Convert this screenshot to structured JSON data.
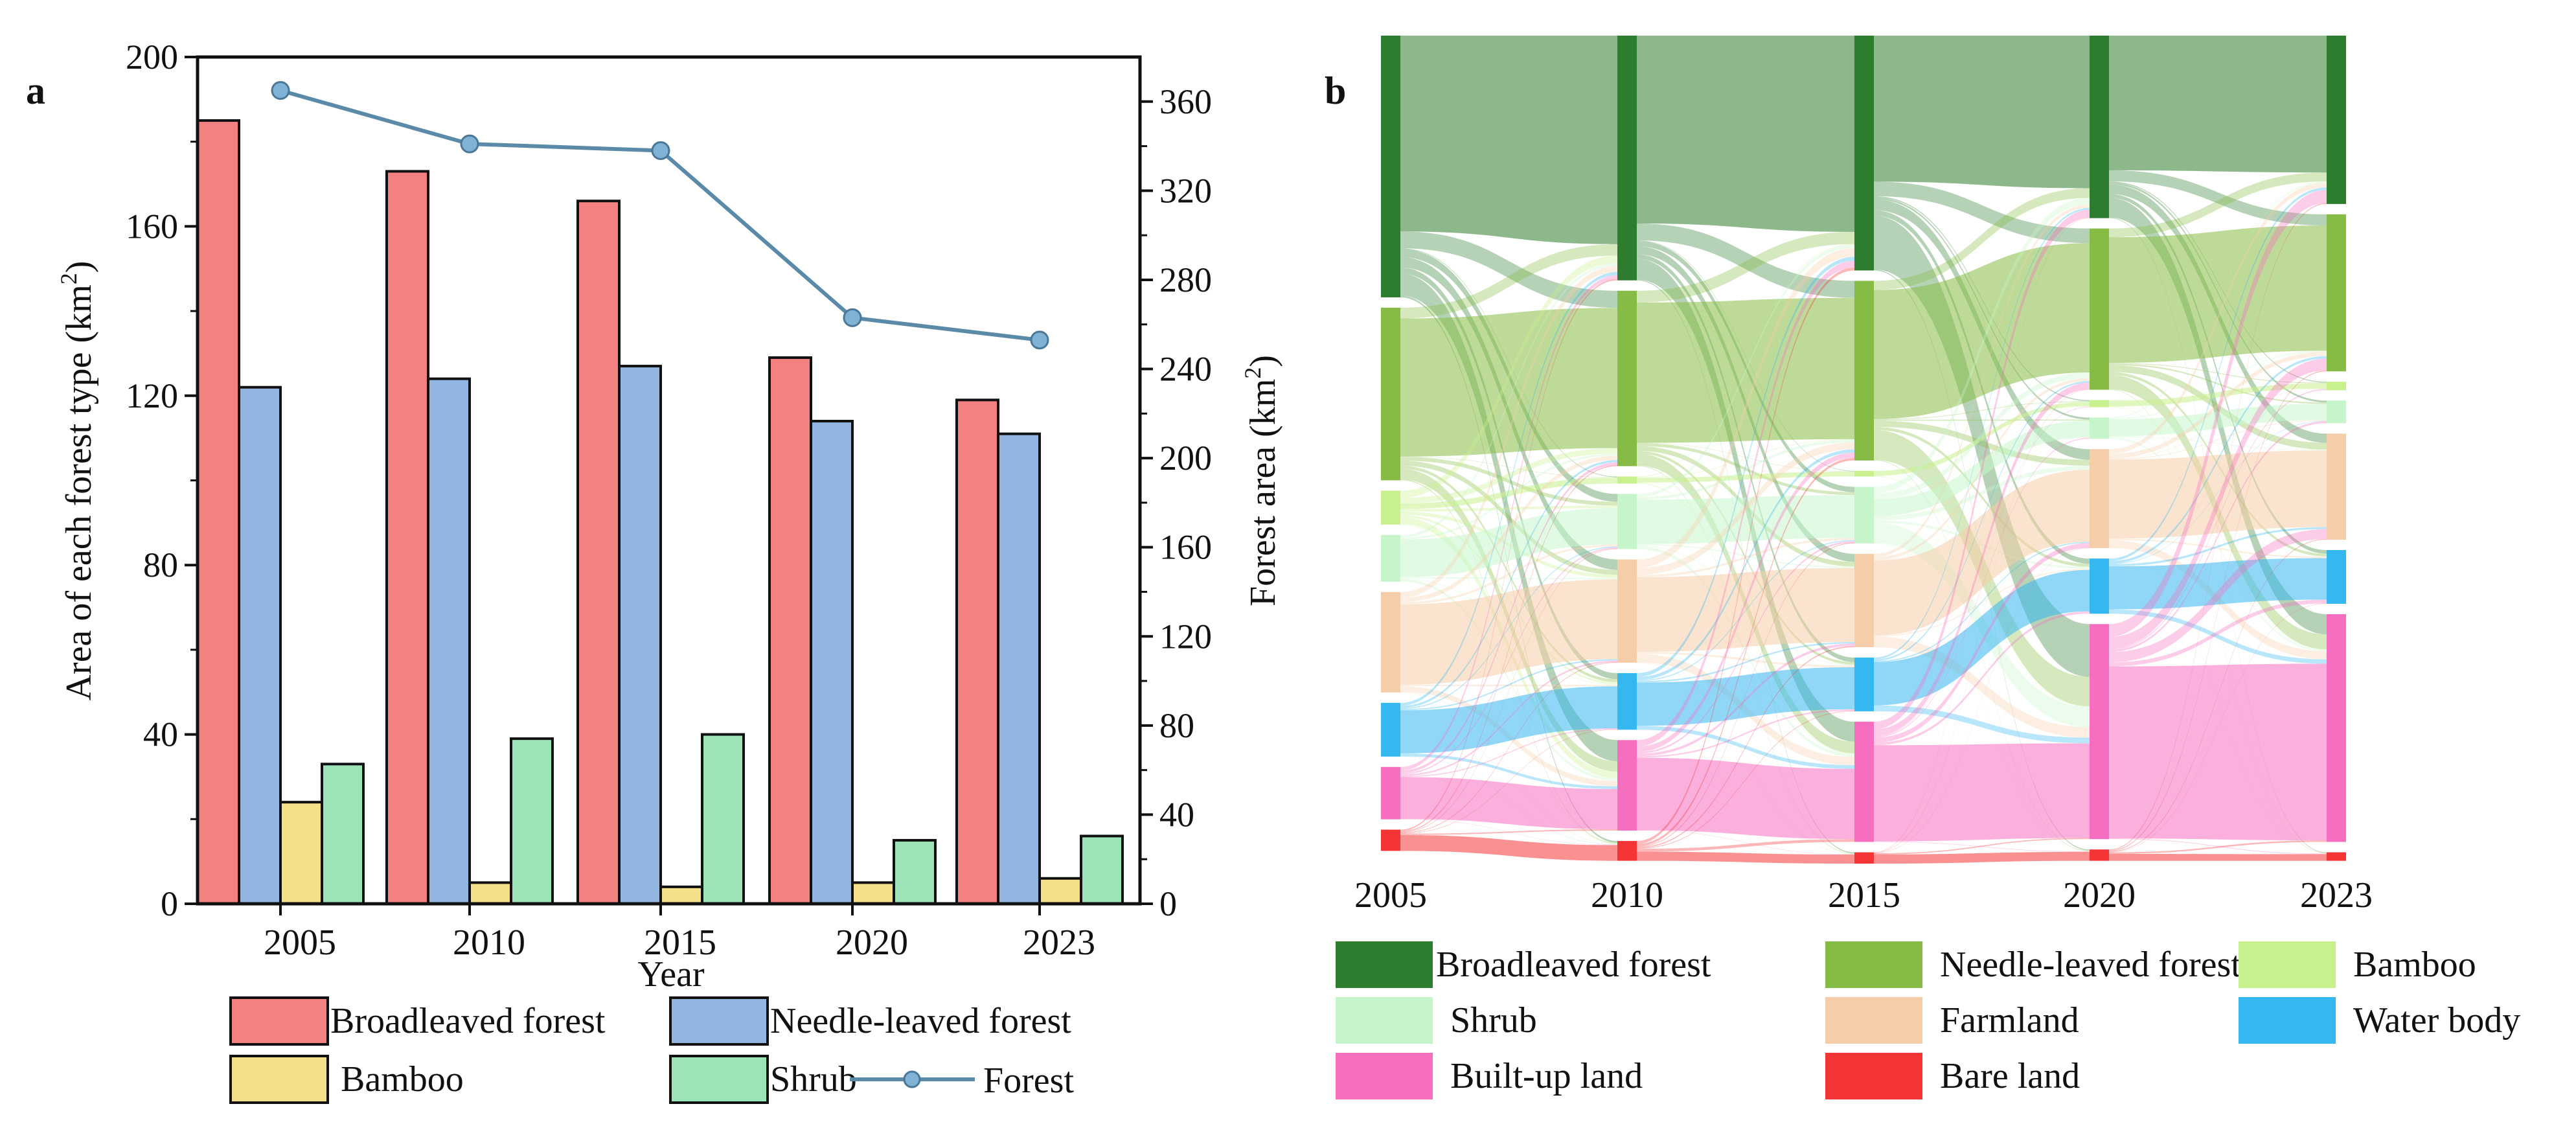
{
  "panel_a_label": "a",
  "panel_b_label": "b",
  "chart_data": [
    {
      "type": "bar",
      "panel": "a",
      "categories": [
        "2005",
        "2010",
        "2015",
        "2020",
        "2023"
      ],
      "series": [
        {
          "name": "Broadleaved forest",
          "color": "#f48181",
          "values": [
            185,
            173,
            166,
            129,
            119
          ]
        },
        {
          "name": "Needle-leaved forest",
          "color": "#92b6e0",
          "values": [
            122,
            124,
            127,
            114,
            111
          ]
        },
        {
          "name": "Bamboo",
          "color": "#f5e08a",
          "values": [
            24,
            5,
            4,
            5,
            6
          ]
        },
        {
          "name": "Shrub",
          "color": "#9de3b8",
          "values": [
            33,
            39,
            40,
            15,
            16
          ]
        }
      ],
      "line_series": {
        "name": "Forest",
        "color": "#5a8aa8",
        "axis": "right",
        "values": [
          365,
          341,
          338,
          263,
          253
        ]
      },
      "xlabel": "Year",
      "ylabel_left": "Area of each forest type (km",
      "ylabel_right": "Forest area (km",
      "ylabel_sup": "2",
      "ylabel_close": ")",
      "ylim_left": [
        0,
        200
      ],
      "ylim_right": [
        0,
        380
      ],
      "yticks_left": [
        "0",
        "40",
        "80",
        "120",
        "160",
        "200"
      ],
      "yticks_right": [
        "0",
        "40",
        "80",
        "120",
        "160",
        "200",
        "240",
        "280",
        "320",
        "360"
      ],
      "legend": [
        "Broadleaved forest",
        "Needle-leaved forest",
        "Bamboo",
        "Shrub",
        "Forest"
      ]
    },
    {
      "type": "sankey",
      "panel": "b",
      "years": [
        "2005",
        "2010",
        "2015",
        "2020",
        "2023"
      ],
      "classes": [
        {
          "name": "Broadleaved forest",
          "color": "#2e7d2e"
        },
        {
          "name": "Needle-leaved forest",
          "color": "#86bc46"
        },
        {
          "name": "Bamboo",
          "color": "#c8f08c"
        },
        {
          "name": "Shrub",
          "color": "#c6f5cc"
        },
        {
          "name": "Farmland",
          "color": "#f5cda8"
        },
        {
          "name": "Water body",
          "color": "#35b7f0"
        },
        {
          "name": "Built-up land",
          "color": "#f56ec0"
        },
        {
          "name": "Bare land",
          "color": "#f53535"
        }
      ],
      "node_values": [
        [
          185,
          122,
          24,
          33,
          71,
          38,
          37,
          15
        ],
        [
          173,
          124,
          5,
          39,
          73,
          40,
          64,
          14
        ],
        [
          166,
          127,
          4,
          40,
          66,
          38,
          85,
          8
        ],
        [
          129,
          114,
          5,
          15,
          70,
          39,
          152,
          8
        ],
        [
          119,
          111,
          6,
          16,
          75,
          38,
          161,
          6
        ]
      ]
    }
  ]
}
